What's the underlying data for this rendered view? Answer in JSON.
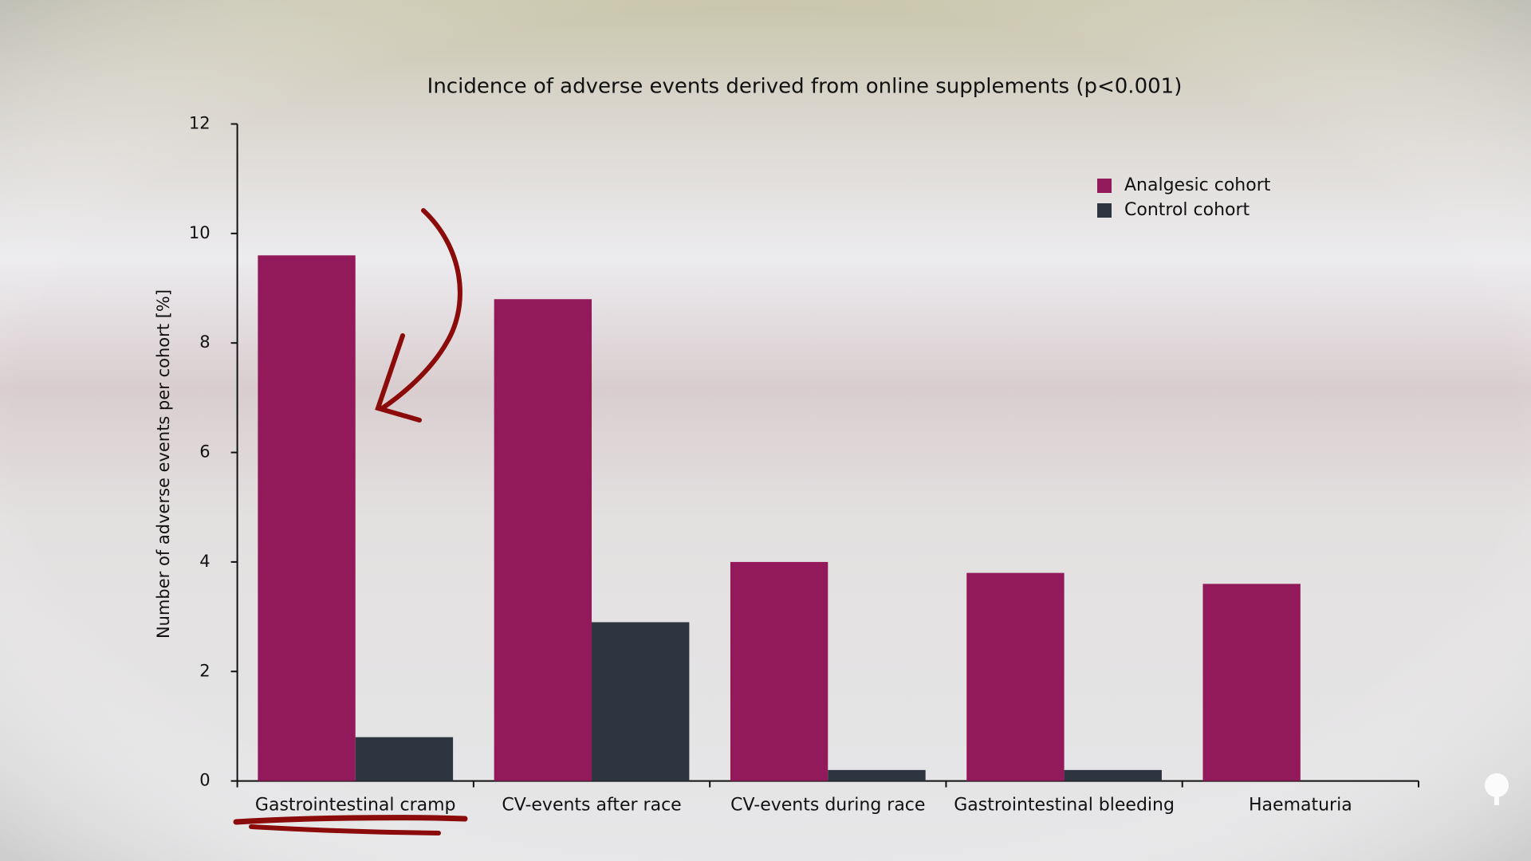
{
  "chart_data": {
    "type": "bar",
    "title": "Incidence of adverse events derived from online supplements (p<0.001)",
    "y_label": "Number of adverse events per cohort [%]",
    "categories": [
      "Gastrointestinal cramp",
      "CV-events after race",
      "CV-events during race",
      "Gastrointestinal bleeding",
      "Haematuria"
    ],
    "series": [
      {
        "name": "Analgesic cohort",
        "color": "#931a5a",
        "values": [
          9.6,
          8.8,
          4.0,
          3.8,
          3.6
        ]
      },
      {
        "name": "Control cohort",
        "color": "#2e3440",
        "values": [
          0.8,
          2.9,
          0.2,
          0.2,
          0
        ]
      }
    ],
    "ylim": [
      0,
      12
    ],
    "yticks": [
      0,
      2,
      4,
      6,
      8,
      10,
      12
    ],
    "legend": "upper right",
    "grid": false
  }
}
